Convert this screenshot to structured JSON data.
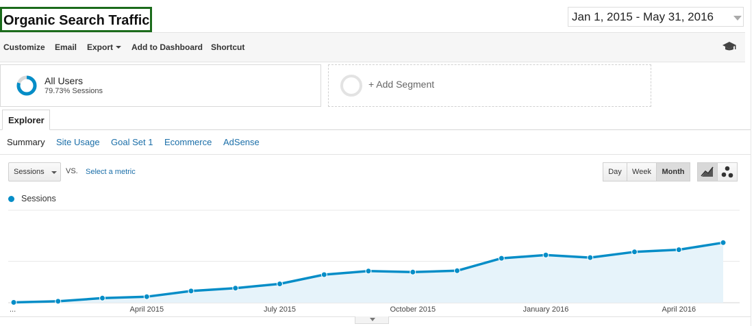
{
  "header": {
    "title": "Organic Search Traffic",
    "date_range": "Jan 1, 2015 - May 31, 2016"
  },
  "toolbar": {
    "customize": "Customize",
    "email": "Email",
    "export": "Export",
    "add_to_dashboard": "Add to Dashboard",
    "shortcut": "Shortcut",
    "right_icon": "graduation-cap-icon"
  },
  "segments": {
    "all_users": {
      "name": "All Users",
      "sessions_text": "79.73% Sessions",
      "sessions_pct": 79.73
    },
    "add_segment": "+ Add Segment"
  },
  "tabs": {
    "explorer": "Explorer"
  },
  "subtabs": [
    "Summary",
    "Site Usage",
    "Goal Set 1",
    "Ecommerce",
    "AdSense"
  ],
  "controls": {
    "metric": "Sessions",
    "vs": "VS.",
    "select_metric": "Select a metric",
    "periods": [
      "Day",
      "Week",
      "Month"
    ],
    "active_period": "Month",
    "view_icons": [
      "line-chart-icon",
      "motion-chart-icon"
    ]
  },
  "colors": {
    "series": "#058dc7",
    "area": "#e6f3fa",
    "title_border": "#1b6b1b",
    "link": "#1a6ea8"
  },
  "chart_data": {
    "type": "area",
    "legend": "top-left",
    "grid": true,
    "x_ticks": [
      {
        "label": "...",
        "index": 0
      },
      {
        "label": "April 2015",
        "index": 3
      },
      {
        "label": "July 2015",
        "index": 6
      },
      {
        "label": "October 2015",
        "index": 9
      },
      {
        "label": "January 2016",
        "index": 12
      },
      {
        "label": "April 2016",
        "index": 15
      }
    ],
    "series": [
      {
        "name": "Sessions",
        "values": [
          1,
          4,
          13,
          17,
          33,
          41,
          53,
          79,
          89,
          86,
          90,
          125,
          134,
          127,
          143,
          149,
          169
        ]
      }
    ],
    "ylim": [
      0,
      260
    ]
  }
}
